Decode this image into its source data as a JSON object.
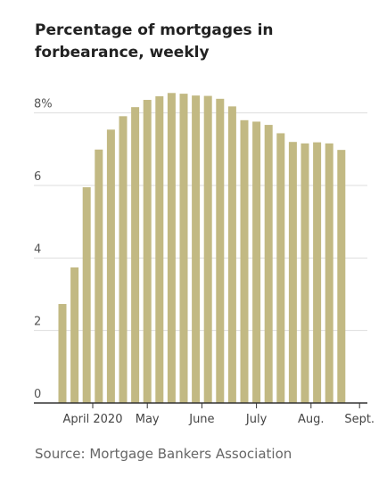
{
  "title": "Percentage of mortgages in forbearance, weekly",
  "source": "Source: Mortgage Bankers Association",
  "colors": {
    "bar": "#C2B983",
    "grid": "#DDDDDD",
    "baseline": "#333333"
  },
  "chart_data": {
    "type": "bar",
    "title": "Percentage of mortgages in forbearance, weekly",
    "xlabel": "",
    "ylabel": "",
    "ylim": [
      0,
      9
    ],
    "grid": true,
    "y_ticks": [
      {
        "value": 0,
        "label": "0"
      },
      {
        "value": 2,
        "label": "2"
      },
      {
        "value": 4,
        "label": "4"
      },
      {
        "value": 6,
        "label": "6"
      },
      {
        "value": 8,
        "label": "8%"
      }
    ],
    "x_tick_labels": [
      {
        "label": "April 2020",
        "index": 2.5
      },
      {
        "label": "May",
        "index": 7
      },
      {
        "label": "June",
        "index": 11.5
      },
      {
        "label": "July",
        "index": 16
      },
      {
        "label": "Aug.",
        "index": 20.5
      },
      {
        "label": "Sept.",
        "index": 24.5
      }
    ],
    "values": [
      2.73,
      3.74,
      5.95,
      6.99,
      7.54,
      7.91,
      8.16,
      8.36,
      8.46,
      8.55,
      8.53,
      8.48,
      8.47,
      8.39,
      8.18,
      7.8,
      7.76,
      7.67,
      7.44,
      7.2,
      7.16,
      7.19,
      7.16,
      6.98
    ]
  }
}
